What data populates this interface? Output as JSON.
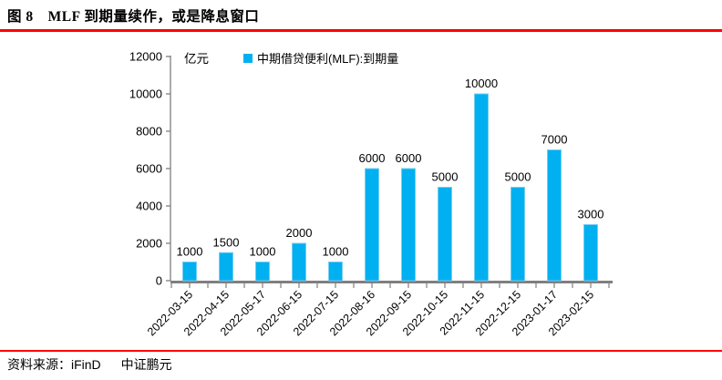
{
  "header": {
    "title": "图 8　MLF 到期量续作，或是降息窗口"
  },
  "footer": {
    "source_label": "资料来源：iFinD",
    "company": "中证鹏元"
  },
  "colors": {
    "accent_red": "#FE0000",
    "bar": "#00B0F0",
    "bar_edge": "#74CEF3",
    "axis": "#7F7F7F",
    "text": "#000000"
  },
  "chart_data": {
    "type": "bar",
    "title": "",
    "unit_label": "亿元",
    "legend": [
      "中期借贷便利(MLF):到期量"
    ],
    "legend_position": "top",
    "categories": [
      "2022-03-15",
      "2022-04-15",
      "2022-05-17",
      "2022-06-15",
      "2022-07-15",
      "2022-08-16",
      "2022-09-15",
      "2022-10-15",
      "2022-11-15",
      "2022-12-15",
      "2023-01-17",
      "2023-02-15"
    ],
    "values": [
      1000,
      1500,
      1000,
      2000,
      1000,
      6000,
      6000,
      5000,
      10000,
      5000,
      7000,
      3000
    ],
    "ylim": [
      0,
      12000
    ],
    "ytick_step": 2000,
    "grid": false,
    "data_labels": true
  }
}
